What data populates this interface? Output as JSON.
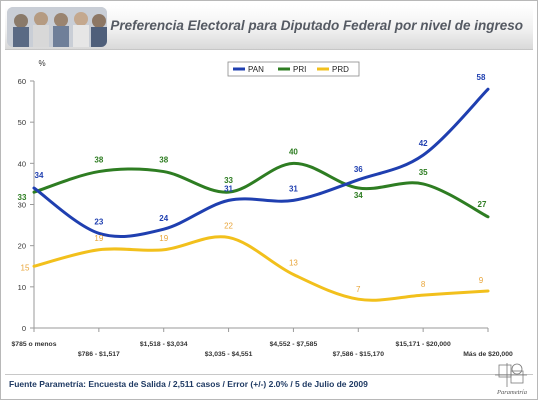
{
  "title": "Preferencia Electoral para Diputado Federal  por nivel de ingreso",
  "footer": "Fuente Parametría: Encuesta de Salida / 2,511 casos / Error (+/-) 2.0% / 5 de Julio de 2009",
  "logo_text": "Parametría",
  "colors": {
    "PAN": "#1f3fb0",
    "PRI": "#2e7d22",
    "PRD": "#f2c01c",
    "label_PRD": "#e8a53a",
    "axis": "#9a9a9a",
    "text": "#333333"
  },
  "chart_data": {
    "type": "line",
    "title": "Preferencia Electoral para Diputado Federal  por nivel de ingreso",
    "ylabel": "%",
    "xlabel": "",
    "ylim": [
      0,
      60
    ],
    "yticks": [
      0,
      10,
      20,
      30,
      40,
      50,
      60
    ],
    "grid": false,
    "legend": "top-center",
    "categories": [
      "$785 o menos",
      "$786 - $1,517",
      "$1,518 - $3,034",
      "$3,035 - $4,551",
      "$4,552 - $7,585",
      "$7,586 - $15,170",
      "$15,171 - $20,000",
      "Más de $20,000"
    ],
    "series": [
      {
        "name": "PAN",
        "values": [
          34,
          23,
          24,
          31,
          31,
          36,
          42,
          58
        ]
      },
      {
        "name": "PRI",
        "values": [
          33,
          38,
          38,
          33,
          40,
          34,
          35,
          27
        ]
      },
      {
        "name": "PRD",
        "values": [
          15,
          19,
          19,
          22,
          13,
          7,
          8,
          9
        ]
      }
    ]
  }
}
